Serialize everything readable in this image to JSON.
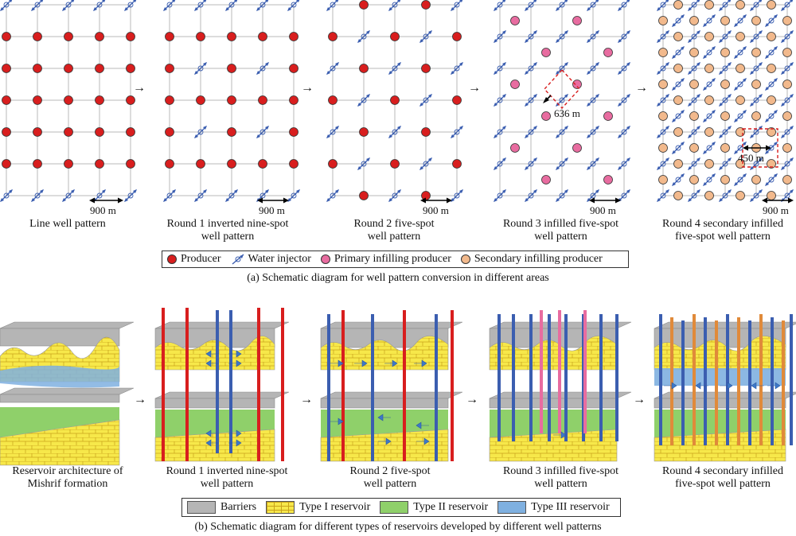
{
  "part_a": {
    "panels": [
      {
        "caption_lines": [
          "Line well pattern"
        ],
        "distance": "900 m"
      },
      {
        "caption_lines": [
          "Round 1 inverted nine-spot",
          "well pattern"
        ],
        "distance": "900 m"
      },
      {
        "caption_lines": [
          "Round 2 five-spot",
          "well pattern"
        ],
        "distance": "900 m"
      },
      {
        "caption_lines": [
          "Round 3 infilled five-spot",
          "well pattern"
        ],
        "distance": "900 m",
        "infill_distance": "636 m"
      },
      {
        "caption_lines": [
          "Round 4 secondary infilled",
          "five-spot well pattern"
        ],
        "distance": "900 m",
        "infill_distance": "450 m"
      }
    ],
    "legend": [
      {
        "label": "Producer",
        "icon": "producer-icon",
        "color": "#d81e1e"
      },
      {
        "label": "Water injector",
        "icon": "water-injector-icon",
        "color": "#3b5eb0"
      },
      {
        "label": "Primary infilling producer",
        "icon": "primary-infill-icon",
        "color": "#e86ca0"
      },
      {
        "label": "Secondary infilling producer",
        "icon": "secondary-infill-icon",
        "color": "#f2b98c"
      }
    ],
    "subtitle": "(a) Schematic diagram for well pattern conversion in different areas"
  },
  "part_b": {
    "panels": [
      {
        "caption_lines": [
          "Reservoir architecture of",
          "Mishrif formation"
        ]
      },
      {
        "caption_lines": [
          "Round 1 inverted nine-spot",
          "well pattern"
        ]
      },
      {
        "caption_lines": [
          "Round 2 five-spot",
          "well pattern"
        ]
      },
      {
        "caption_lines": [
          "Round 3 infilled five-spot",
          "well pattern"
        ]
      },
      {
        "caption_lines": [
          "Round 4 secondary infilled",
          "five-spot well pattern"
        ]
      }
    ],
    "legend": [
      {
        "label": "Barriers",
        "color": "#b5b5b5"
      },
      {
        "label": "Type I reservoir",
        "color": "#f7e84a"
      },
      {
        "label": "Type II reservoir",
        "color": "#8fd06a"
      },
      {
        "label": "Type III reservoir",
        "color": "#7fb0e0"
      }
    ],
    "subtitle": "(b) Schematic diagram for different types of reservoirs developed by different well patterns"
  },
  "colors": {
    "producer": "#d81e1e",
    "injector": "#3b5eb0",
    "primary_infill": "#e86ca0",
    "secondary_infill": "#f2b98c",
    "grid": "#b8b8b8",
    "barrier": "#b5b5b5",
    "type1": "#f7e84a",
    "type2": "#8fd06a",
    "type3": "#7fb0e0",
    "dashed_box": "#d81e1e"
  }
}
